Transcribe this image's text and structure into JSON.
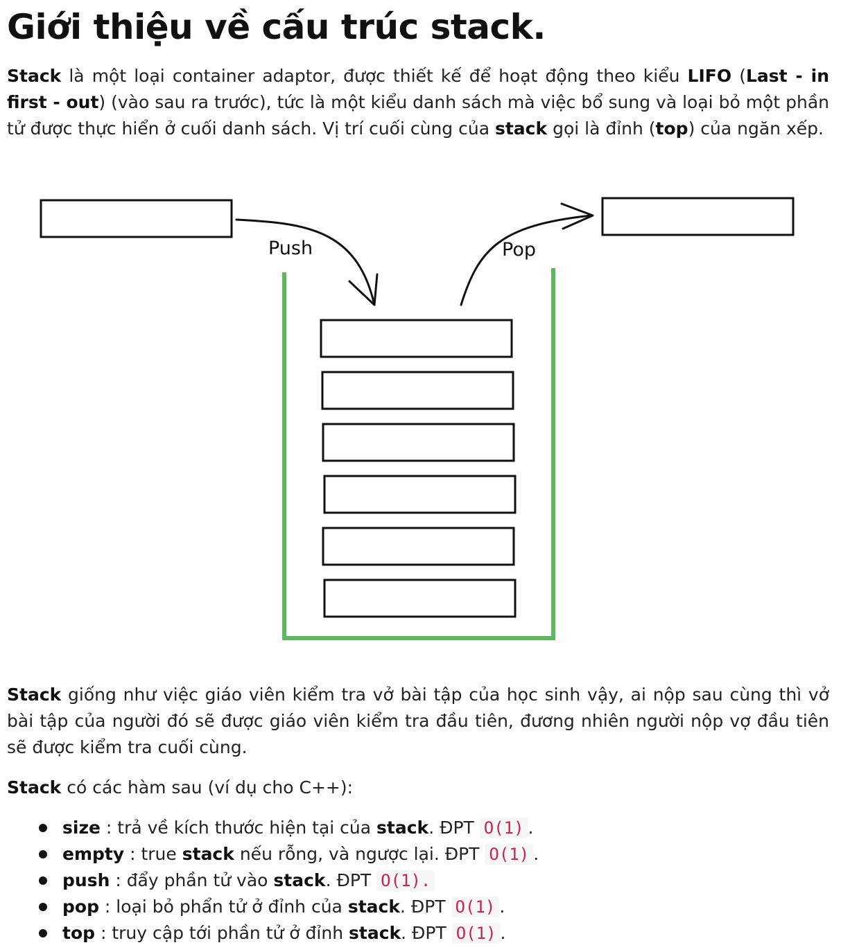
{
  "title": "Giới thiệu về cấu trúc stack.",
  "intro": {
    "t1": "Stack",
    "t2": " là một loại container adaptor, được thiết kế để hoạt động theo kiểu ",
    "t3": "LIFO",
    "t4": " (",
    "t5": "Last - in first - out",
    "t6": ") (vào sau ra trước), tức là một kiểu danh sách mà việc bổ sung và loại bỏ một phần tử được thực hiển ở cuối danh sách. Vị trí cuối cùng của ",
    "t7": "stack",
    "t8": " gọi là đỉnh (",
    "t9": "top",
    "t10": ") của ngăn xếp."
  },
  "diagram": {
    "push_label": "Push",
    "pop_label": "Pop",
    "container_color": "#5cb85c",
    "stacked_box_count": 6
  },
  "analogy": {
    "t1": "Stack",
    "t2": " giống như việc giáo viên kiểm tra vở bài tập của học sinh vậy, ai nộp sau cùng thì vở bài tập của người đó sẽ được giáo viên kiểm tra đầu tiên, đương nhiên người nộp vợ đầu tiên sẽ được kiểm tra cuối cùng."
  },
  "funcs_intro": {
    "t1": "Stack",
    "t2": " có các hàm sau (ví dụ cho C++):"
  },
  "functions": [
    {
      "name": "size",
      "desc": " : trả về kích thước hiện tại của ",
      "obj": "stack",
      "dpt": ". ĐPT ",
      "complexity": "O(1)",
      "tail": "."
    },
    {
      "name": "empty",
      "desc": " : true ",
      "obj": "stack",
      "dpt": " nếu rỗng, và ngược lại. ĐPT ",
      "complexity": "O(1)",
      "tail": "."
    },
    {
      "name": "push",
      "desc": " : đẩy phần tử vào ",
      "obj": "stack",
      "dpt": ". ĐPT ",
      "complexity": "O(1).",
      "tail": ""
    },
    {
      "name": "pop",
      "desc": " : loại bỏ phẩn tử ở đỉnh của ",
      "obj": "stack",
      "dpt": ". ĐPT ",
      "complexity": "O(1)",
      "tail": "."
    },
    {
      "name": "top",
      "desc": " : truy cập tới phần tử ở đỉnh ",
      "obj": "stack",
      "dpt": ". ĐPT ",
      "complexity": "O(1)",
      "tail": "."
    }
  ]
}
